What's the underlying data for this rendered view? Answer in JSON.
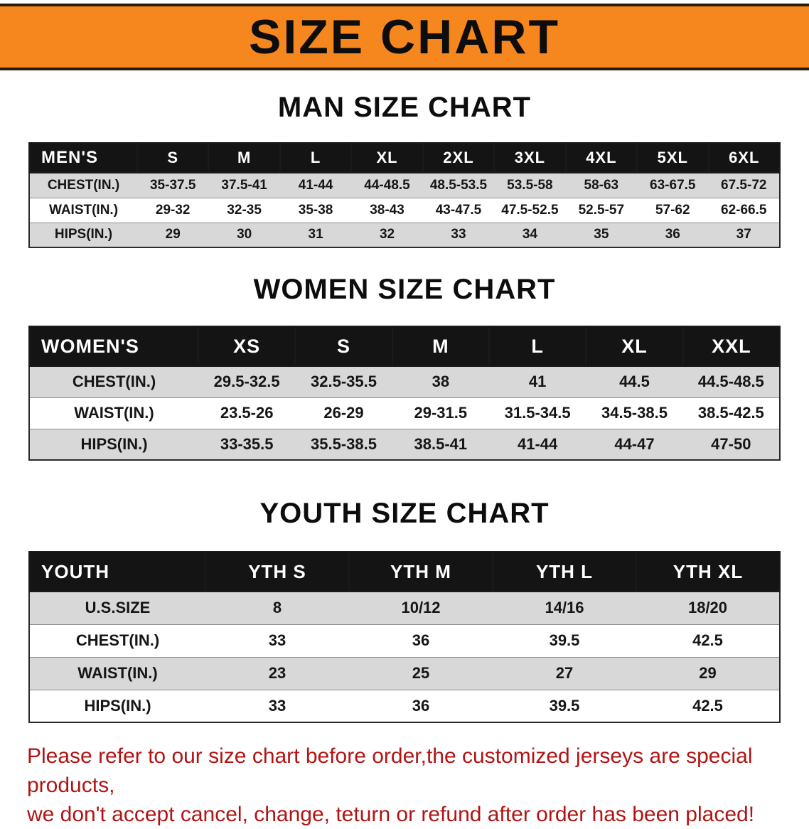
{
  "banner": {
    "title": "SIZE CHART"
  },
  "sections": [
    {
      "heading": "MAN SIZE CHART",
      "table": {
        "header": [
          "MEN'S",
          "S",
          "M",
          "L",
          "XL",
          "2XL",
          "3XL",
          "4XL",
          "5XL",
          "6XL"
        ],
        "rows": [
          [
            "CHEST(IN.)",
            "35-37.5",
            "37.5-41",
            "41-44",
            "44-48.5",
            "48.5-53.5",
            "53.5-58",
            "58-63",
            "63-67.5",
            "67.5-72"
          ],
          [
            "WAIST(IN.)",
            "29-32",
            "32-35",
            "35-38",
            "38-43",
            "43-47.5",
            "47.5-52.5",
            "52.5-57",
            "57-62",
            "62-66.5"
          ],
          [
            "HIPS(IN.)",
            "29",
            "30",
            "31",
            "32",
            "33",
            "34",
            "35",
            "36",
            "37"
          ]
        ]
      }
    },
    {
      "heading": "WOMEN SIZE CHART",
      "table": {
        "header": [
          "WOMEN'S",
          "XS",
          "S",
          "M",
          "L",
          "XL",
          "XXL"
        ],
        "rows": [
          [
            "CHEST(IN.)",
            "29.5-32.5",
            "32.5-35.5",
            "38",
            "41",
            "44.5",
            "44.5-48.5"
          ],
          [
            "WAIST(IN.)",
            "23.5-26",
            "26-29",
            "29-31.5",
            "31.5-34.5",
            "34.5-38.5",
            "38.5-42.5"
          ],
          [
            "HIPS(IN.)",
            "33-35.5",
            "35.5-38.5",
            "38.5-41",
            "41-44",
            "44-47",
            "47-50"
          ]
        ]
      }
    },
    {
      "heading": "YOUTH SIZE CHART",
      "table": {
        "header": [
          "YOUTH",
          "YTH S",
          "YTH M",
          "YTH L",
          "YTH XL"
        ],
        "rows": [
          [
            "U.S.SIZE",
            "8",
            "10/12",
            "14/16",
            "18/20"
          ],
          [
            "CHEST(IN.)",
            "33",
            "36",
            "39.5",
            "42.5"
          ],
          [
            "WAIST(IN.)",
            "23",
            "25",
            "27",
            "29"
          ],
          [
            "HIPS(IN.)",
            "33",
            "36",
            "39.5",
            "42.5"
          ]
        ]
      }
    }
  ],
  "footer": {
    "line1": "Please refer to our size chart before order,the customized jerseys are special products,",
    "line2": "we don't accept cancel, change, teturn or refund after order has been placed!"
  },
  "colors": {
    "banner_bg": "#f6871f",
    "table_header_bg": "#141414",
    "row_alt_bg": "#d8d8d8",
    "footer_text": "#b11414"
  }
}
